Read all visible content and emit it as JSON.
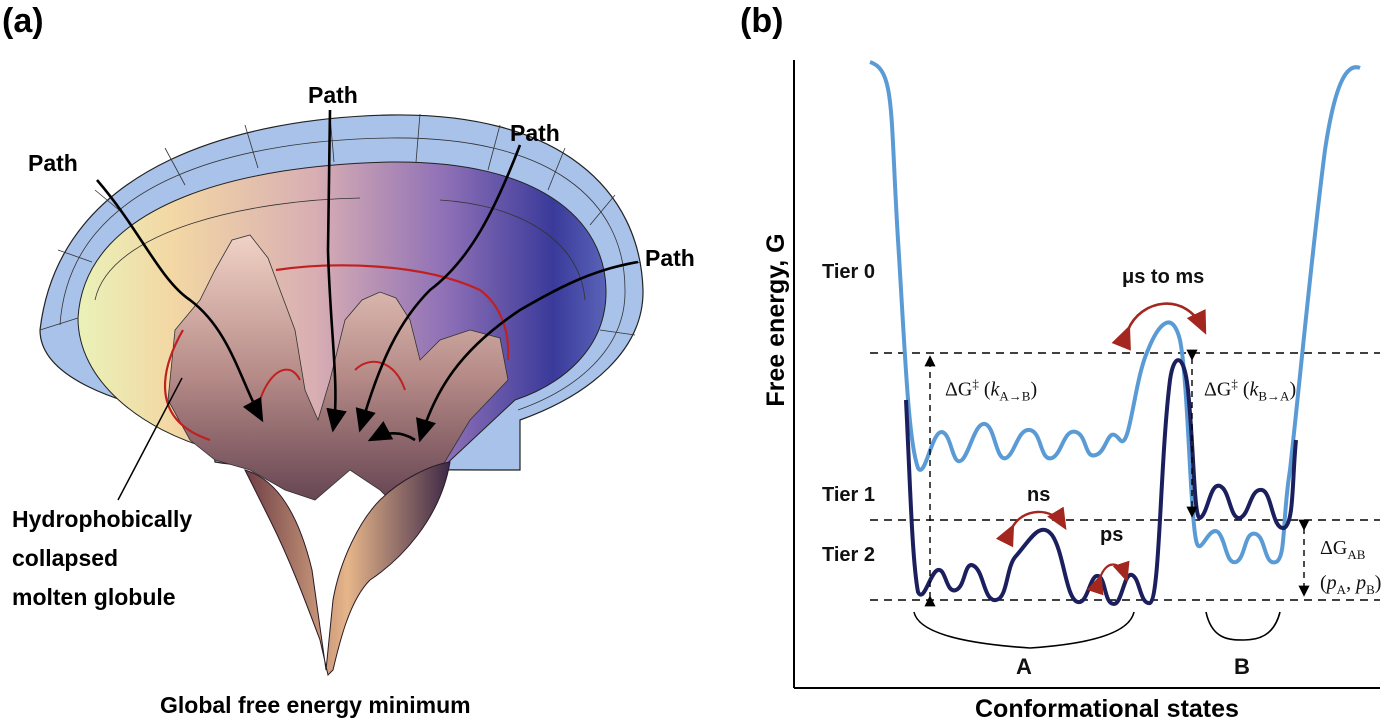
{
  "panel_a": {
    "label": "(a)",
    "path_labels": [
      "Path",
      "Path",
      "Path",
      "Path",
      "Path"
    ],
    "molten_globule": [
      "Hydrophobically",
      "collapsed",
      "molten globule"
    ],
    "bottom_caption": "Global free energy minimum"
  },
  "panel_b": {
    "label": "(b)",
    "y_axis_title": "Free energy, G",
    "x_axis_title": "Conformational states",
    "tiers": [
      "Tier 0",
      "Tier 1",
      "Tier 2"
    ],
    "timescales": {
      "slow": "μs to ms",
      "mid": "ns",
      "fast": "ps"
    },
    "barrier_ab": {
      "prefix": "ΔG",
      "sup": "‡",
      "k": "k",
      "sub": "A→B"
    },
    "barrier_ba": {
      "prefix": "ΔG",
      "sup": "‡",
      "k": "k",
      "sub": "B→A"
    },
    "delta_g_ab": {
      "prefix": "ΔG",
      "sub": "AB",
      "line2_p1": "p",
      "sub_p1": "A",
      "line2_p2": "p",
      "sub_p2": "B"
    },
    "states": {
      "a": "A",
      "b": "B"
    },
    "colors": {
      "light_curve": "#5b9bd5",
      "dark_curve": "#1c1f5e",
      "arrow_red": "#a3271f"
    }
  }
}
